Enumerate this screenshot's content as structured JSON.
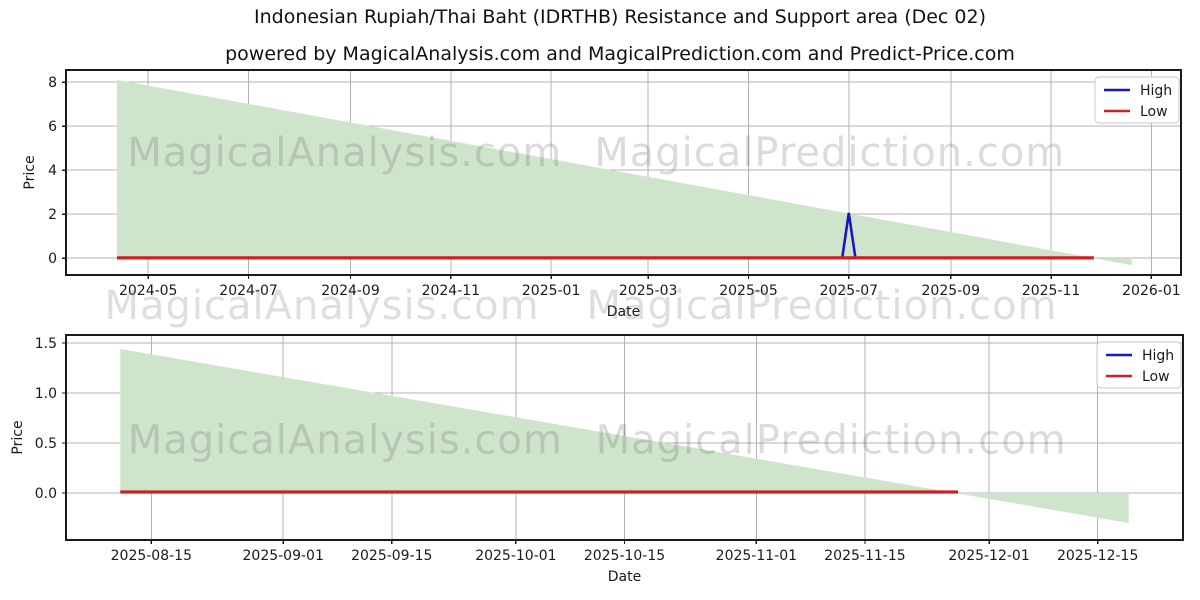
{
  "title": "Indonesian Rupiah/Thai Baht (IDRTHB) Resistance and Support area (Dec 02)",
  "subtitle": "powered by MagicalAnalysis.com and MagicalPrediction.com and Predict-Price.com",
  "watermarks": [
    "MagicalAnalysis.com",
    "MagicalPrediction.com"
  ],
  "legend": {
    "entries": [
      {
        "label": "High",
        "color": "#1717c4"
      },
      {
        "label": "Low",
        "color": "#cf2020"
      }
    ]
  },
  "colors": {
    "high": "#1717c4",
    "low": "#cf2020",
    "area": "#cfe5cb",
    "grid": "#b3b3b3",
    "spine": "#1a1a1a",
    "text": "#1a1a1a"
  },
  "chart_data": {
    "type": "area",
    "charts": [
      {
        "name": "full-history",
        "xlabel": "Date",
        "ylabel": "Price",
        "xlim": [
          "2024-03-12",
          "2026-01-19"
        ],
        "ylim": [
          -0.77,
          8.55
        ],
        "yticks": [
          {
            "v": 0,
            "label": "0"
          },
          {
            "v": 2,
            "label": "2"
          },
          {
            "v": 4,
            "label": "4"
          },
          {
            "v": 6,
            "label": "6"
          },
          {
            "v": 8,
            "label": "8"
          }
        ],
        "xticks": [
          {
            "d": "2024-05-01",
            "label": "2024-05"
          },
          {
            "d": "2024-07-01",
            "label": "2024-07"
          },
          {
            "d": "2024-09-01",
            "label": "2024-09"
          },
          {
            "d": "2024-11-01",
            "label": "2024-11"
          },
          {
            "d": "2025-01-01",
            "label": "2025-01"
          },
          {
            "d": "2025-03-01",
            "label": "2025-03"
          },
          {
            "d": "2025-05-01",
            "label": "2025-05"
          },
          {
            "d": "2025-07-01",
            "label": "2025-07"
          },
          {
            "d": "2025-09-01",
            "label": "2025-09"
          },
          {
            "d": "2025-11-01",
            "label": "2025-11"
          },
          {
            "d": "2026-01-01",
            "label": "2026-01"
          }
        ],
        "support_area": {
          "x": [
            "2024-04-12",
            "2025-12-20"
          ],
          "y": [
            8.1,
            -0.32
          ],
          "baseline": 0
        },
        "low_line": {
          "x": [
            "2024-04-12",
            "2025-11-27"
          ],
          "y": 0.01
        },
        "high_line": {
          "x": [
            "2025-06-27",
            "2025-07-01",
            "2025-07-05"
          ],
          "y": [
            0.01,
            2.05,
            0.01
          ]
        }
      },
      {
        "name": "recent-zoom",
        "xlabel": "Date",
        "ylabel": "Price",
        "xlim": [
          "2025-08-04",
          "2025-12-26"
        ],
        "ylim": [
          -0.47,
          1.58
        ],
        "yticks": [
          {
            "v": 0.0,
            "label": "0.0"
          },
          {
            "v": 0.5,
            "label": "0.5"
          },
          {
            "v": 1.0,
            "label": "1.0"
          },
          {
            "v": 1.5,
            "label": "1.5"
          }
        ],
        "xticks": [
          {
            "d": "2025-08-15",
            "label": "2025-08-15"
          },
          {
            "d": "2025-09-01",
            "label": "2025-09-01"
          },
          {
            "d": "2025-09-15",
            "label": "2025-09-15"
          },
          {
            "d": "2025-10-01",
            "label": "2025-10-01"
          },
          {
            "d": "2025-10-15",
            "label": "2025-10-15"
          },
          {
            "d": "2025-11-01",
            "label": "2025-11-01"
          },
          {
            "d": "2025-11-15",
            "label": "2025-11-15"
          },
          {
            "d": "2025-12-01",
            "label": "2025-12-01"
          },
          {
            "d": "2025-12-15",
            "label": "2025-12-15"
          }
        ],
        "support_area": {
          "x": [
            "2025-08-11",
            "2025-12-19"
          ],
          "y": [
            1.44,
            -0.3
          ],
          "baseline": 0
        },
        "low_line": {
          "x": [
            "2025-08-11",
            "2025-11-27"
          ],
          "y": 0.01
        },
        "high_line": null
      }
    ]
  }
}
